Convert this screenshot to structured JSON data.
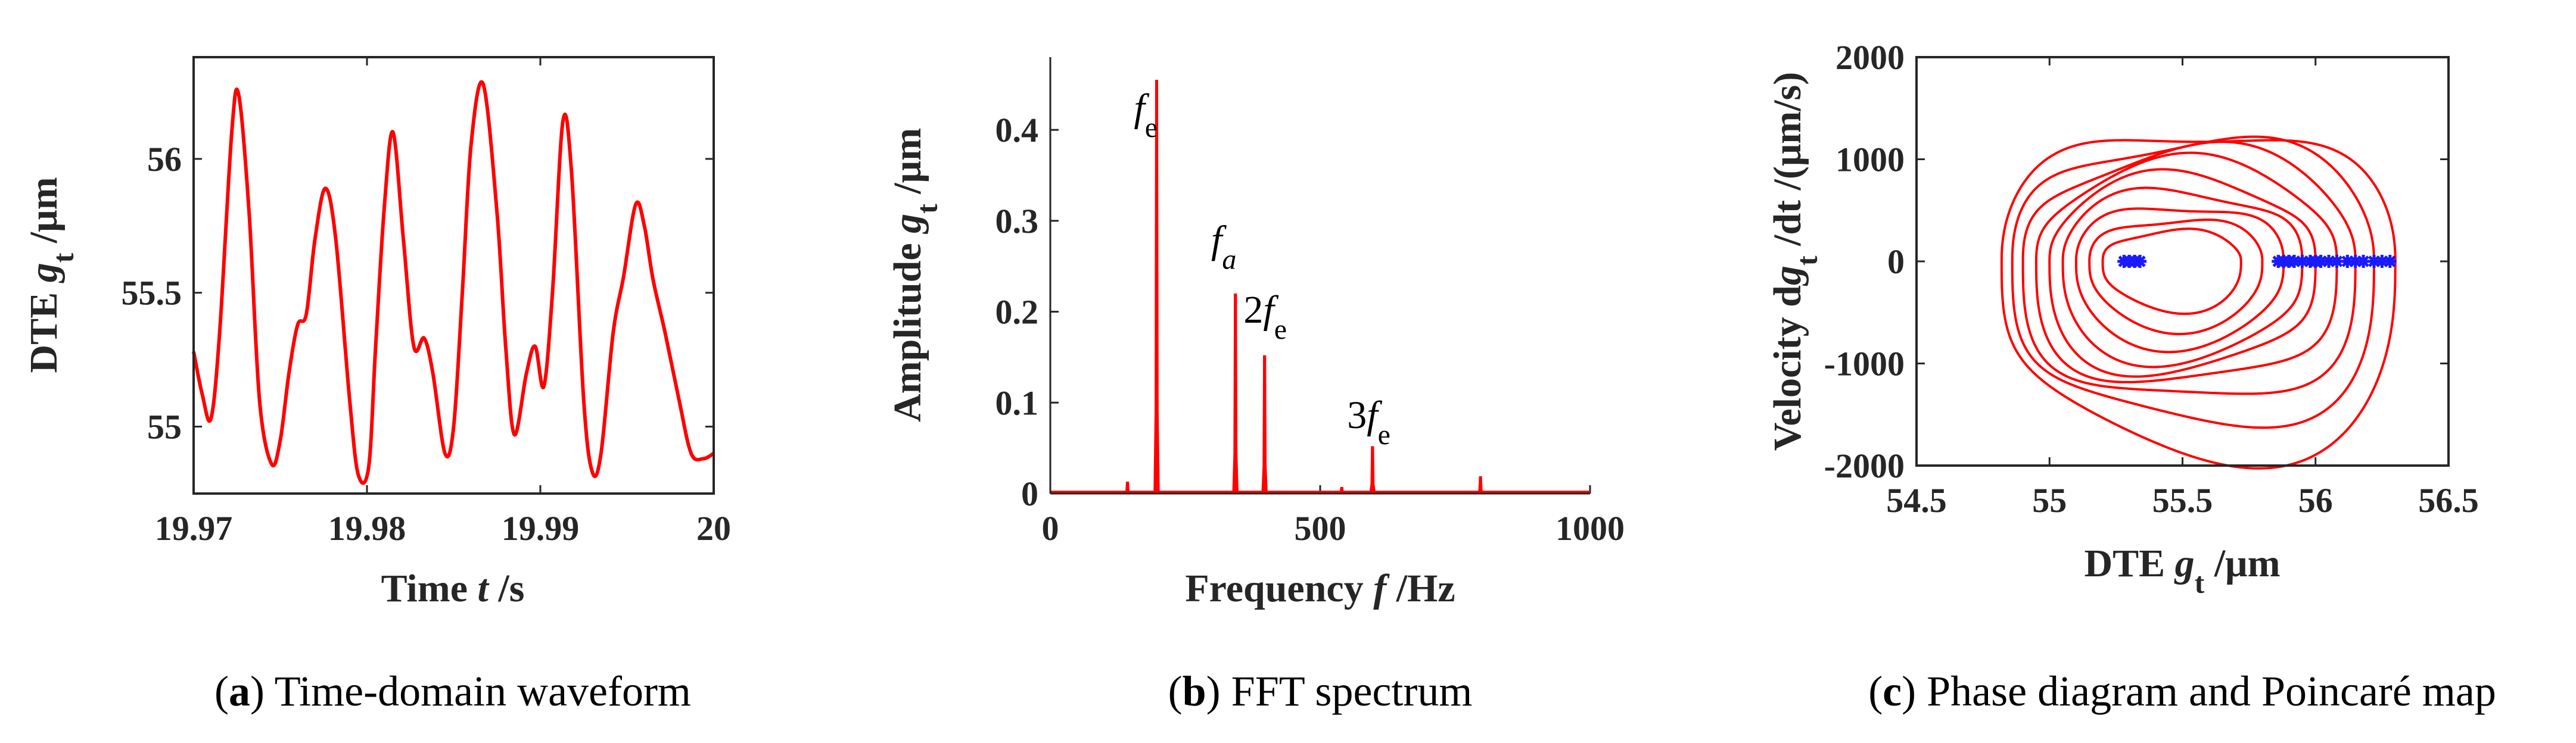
{
  "chart_data": [
    {
      "type": "line",
      "title": "",
      "xlabel_prefix": "Time ",
      "xlabel_var": "t",
      "xlabel_suffix": " /s",
      "ylabel_prefix": "DTE ",
      "ylabel_var": "g",
      "ylabel_sub": "t",
      "ylabel_suffix": " /μm",
      "xlim": [
        19.97,
        20.0
      ],
      "ylim": [
        54.75,
        56.38
      ],
      "xticks": [
        19.97,
        19.98,
        19.99,
        20.0
      ],
      "xtick_labels": [
        "19.97",
        "19.98",
        "19.99",
        "20"
      ],
      "yticks": [
        55,
        55.5,
        56
      ],
      "ytick_labels": [
        "55",
        "55.5",
        "56"
      ],
      "series": [
        {
          "name": "DTE",
          "color": "#ff0000",
          "x": [
            19.97,
            19.9705,
            19.971,
            19.9715,
            19.9722,
            19.9726,
            19.9732,
            19.9738,
            19.9745,
            19.975,
            19.9755,
            19.976,
            19.9765,
            19.977,
            19.9776,
            19.9782,
            19.979,
            19.9795,
            19.9801,
            19.9805,
            19.981,
            19.9815,
            19.9821,
            19.9827,
            19.9833,
            19.9838,
            19.9845,
            19.985,
            19.9855,
            19.986,
            19.9867,
            19.9875,
            19.988,
            19.9885,
            19.9892,
            19.9897,
            19.9902,
            19.9907,
            19.9913,
            19.9918,
            19.9925,
            19.993,
            19.9935,
            19.9942,
            19.9948,
            19.9955,
            19.996,
            19.9965,
            19.9972,
            19.998,
            19.9987,
            19.9994,
            20.0
          ],
          "y": [
            55.28,
            55.12,
            55.03,
            55.35,
            56.1,
            56.24,
            55.8,
            55.1,
            54.86,
            54.95,
            55.2,
            55.38,
            55.42,
            55.7,
            55.89,
            55.7,
            55.1,
            54.82,
            54.85,
            55.3,
            55.82,
            56.1,
            55.7,
            55.3,
            55.33,
            55.2,
            54.9,
            55.0,
            55.5,
            56.05,
            56.28,
            55.8,
            55.3,
            54.97,
            55.2,
            55.3,
            55.15,
            55.5,
            56.14,
            55.95,
            55.1,
            54.83,
            54.9,
            55.35,
            55.56,
            55.83,
            55.75,
            55.55,
            55.35,
            55.1,
            54.9,
            54.88,
            54.9
          ]
        }
      ]
    },
    {
      "type": "line",
      "title": "",
      "xlabel_prefix": "Frequency ",
      "xlabel_var": "f",
      "xlabel_suffix": " /Hz",
      "ylabel_prefix": "Amplitude ",
      "ylabel_var": "g",
      "ylabel_sub": "t",
      "ylabel_suffix": " /μm",
      "xlim": [
        0,
        1000
      ],
      "ylim": [
        0,
        0.48
      ],
      "xticks": [
        0,
        500,
        1000
      ],
      "xtick_labels": [
        "0",
        "500",
        "1000"
      ],
      "yticks": [
        0,
        0.1,
        0.2,
        0.3,
        0.4
      ],
      "ytick_labels": [
        "0",
        "0.1",
        "0.2",
        "0.3",
        "0.4"
      ],
      "series": [
        {
          "name": "FFT amplitude",
          "color": "#ff0000",
          "peaks": [
            {
              "f": 143,
              "amp": 0.013
            },
            {
              "f": 197,
              "amp": 0.455
            },
            {
              "f": 343,
              "amp": 0.22
            },
            {
              "f": 397,
              "amp": 0.152
            },
            {
              "f": 540,
              "amp": 0.007
            },
            {
              "f": 597,
              "amp": 0.052
            },
            {
              "f": 797,
              "amp": 0.019
            }
          ]
        }
      ],
      "annotations": [
        {
          "id": "fe",
          "pre": "",
          "var": "f",
          "sub": "e",
          "f": 155,
          "amp": 0.41
        },
        {
          "id": "fa",
          "pre": "",
          "var": "f",
          "sub": "a",
          "f": 298,
          "amp": 0.265
        },
        {
          "id": "2fe",
          "pre": "2",
          "var": "f",
          "sub": "e",
          "f": 358,
          "amp": 0.188
        },
        {
          "id": "3fe",
          "pre": "3",
          "var": "f",
          "sub": "e",
          "f": 550,
          "amp": 0.072
        }
      ]
    },
    {
      "type": "scatter",
      "title": "",
      "xlabel_prefix": "DTE ",
      "xlabel_var": "g",
      "xlabel_sub": "t",
      "xlabel_suffix": " /μm",
      "ylabel_prefix": "Velocity d",
      "ylabel_var": "g",
      "ylabel_sub": "t",
      "ylabel_suffix": " /dt /(μm/s)",
      "xlim": [
        54.5,
        56.5
      ],
      "ylim": [
        -2000,
        2000
      ],
      "xticks": [
        54.5,
        55,
        55.5,
        56,
        56.5
      ],
      "xtick_labels": [
        "54.5",
        "55",
        "55.5",
        "56",
        "56.5"
      ],
      "yticks": [
        -2000,
        -1000,
        0,
        1000,
        2000
      ],
      "ytick_labels": [
        "-2000",
        "-1000",
        "0",
        "1000",
        "2000"
      ],
      "series": [
        {
          "name": "Phase trajectory",
          "color": "#ff0000",
          "loops": [
            {
              "xmin": 54.82,
              "xmax": 56.3,
              "vmax": 1330,
              "vmin": -1930
            },
            {
              "xmin": 54.86,
              "xmax": 56.22,
              "vmax": 1220,
              "vmin": -1700
            },
            {
              "xmin": 54.9,
              "xmax": 56.15,
              "vmax": 1080,
              "vmin": -1500
            },
            {
              "xmin": 54.95,
              "xmax": 56.08,
              "vmax": 950,
              "vmin": -1300
            },
            {
              "xmin": 55.0,
              "xmax": 56.0,
              "vmax": 820,
              "vmin": -1120
            },
            {
              "xmin": 55.05,
              "xmax": 55.95,
              "vmax": 700,
              "vmin": -950
            },
            {
              "xmin": 55.1,
              "xmax": 55.88,
              "vmax": 560,
              "vmin": -780
            },
            {
              "xmin": 55.15,
              "xmax": 55.8,
              "vmax": 420,
              "vmin": -620
            },
            {
              "xmin": 55.2,
              "xmax": 55.72,
              "vmax": 300,
              "vmin": -460
            }
          ]
        },
        {
          "name": "Poincaré map",
          "color": "#1a1aff",
          "x": [
            55.28,
            55.3,
            55.32,
            55.34,
            55.86,
            55.88,
            55.9,
            55.92,
            55.95,
            55.98,
            56.0,
            56.02,
            56.05,
            56.08,
            56.12,
            56.15,
            56.18,
            56.22,
            56.25,
            56.28
          ],
          "y": [
            0,
            0,
            0,
            0,
            0,
            0,
            0,
            0,
            0,
            0,
            0,
            0,
            0,
            0,
            0,
            0,
            0,
            0,
            0,
            0
          ]
        }
      ]
    }
  ],
  "captions": [
    {
      "letter": "a",
      "text": " Time-domain waveform"
    },
    {
      "letter": "b",
      "text": " FFT spectrum"
    },
    {
      "letter": "c",
      "text": " Phase diagram and Poincaré map"
    }
  ]
}
